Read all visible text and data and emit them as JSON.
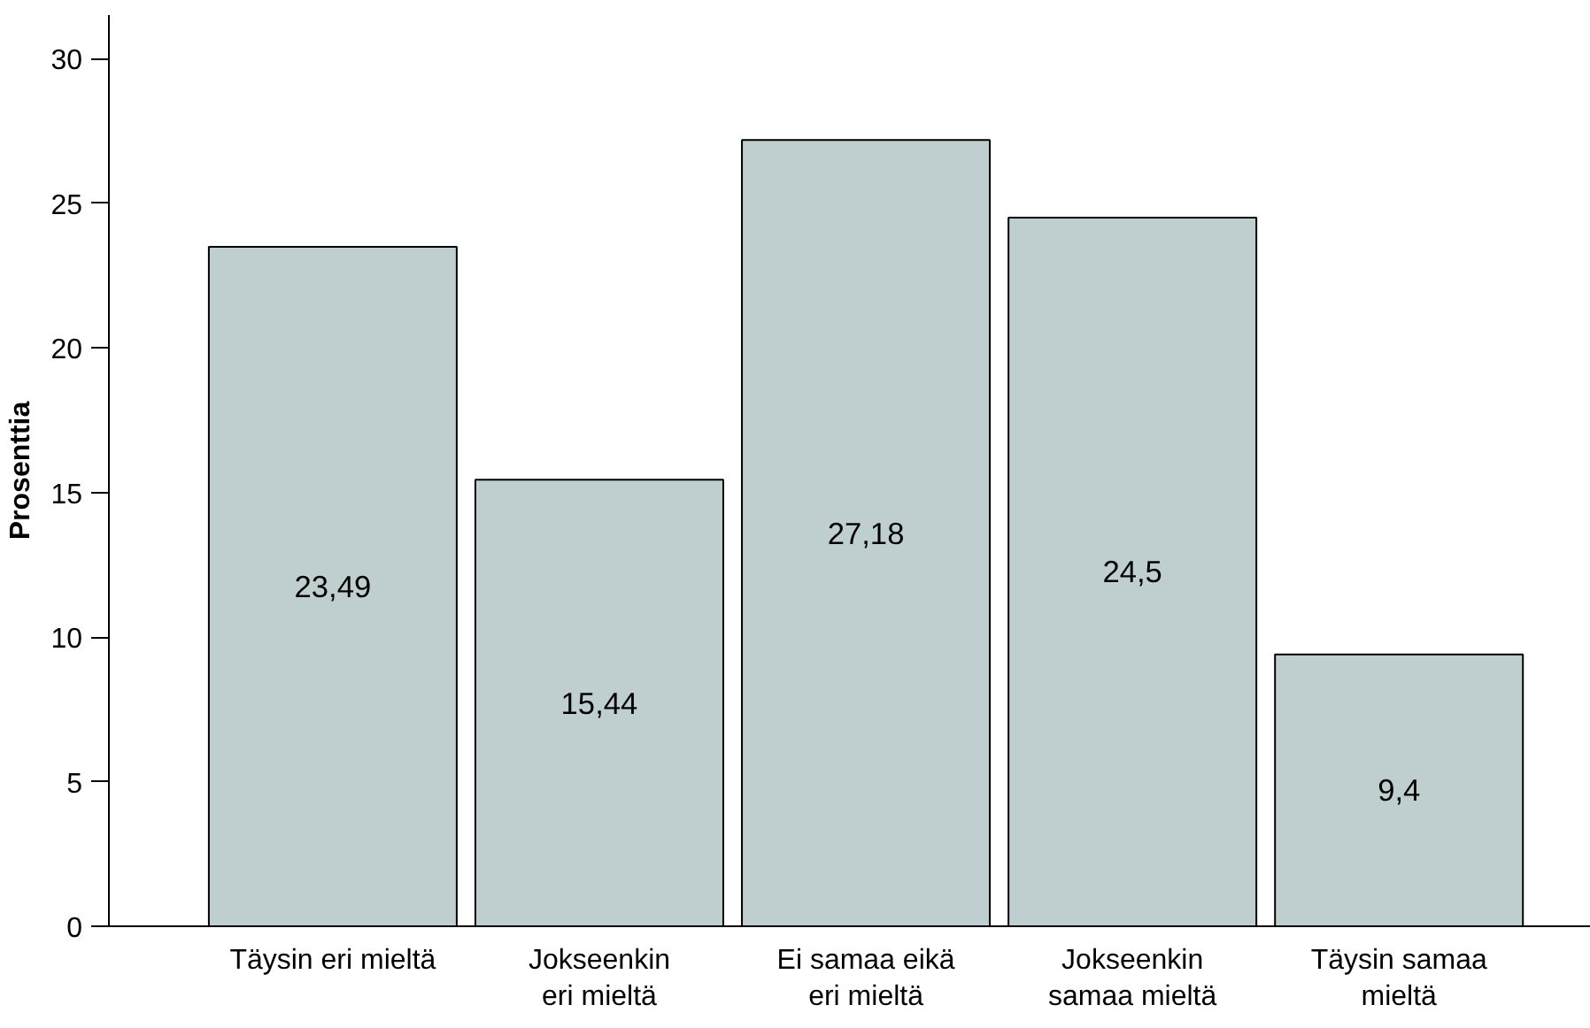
{
  "chart_data": {
    "type": "bar",
    "ylabel": "Prosenttia",
    "categories": [
      "Täysin eri mieltä",
      "Jokseenkin\neri mieltä",
      "Ei samaa eikä\neri mieltä",
      "Jokseenkin\nsamaa mieltä",
      "Täysin samaa\nmieltä"
    ],
    "values": [
      23.49,
      15.44,
      27.18,
      24.5,
      9.4
    ],
    "value_labels": [
      "23,49",
      "15,44",
      "27,18",
      "24,5",
      "9,4"
    ],
    "color": "#bfcfcf",
    "ylim": [
      0,
      31.5
    ],
    "yticks": [
      0,
      5,
      10,
      15,
      20,
      25,
      30
    ],
    "grid": false
  }
}
